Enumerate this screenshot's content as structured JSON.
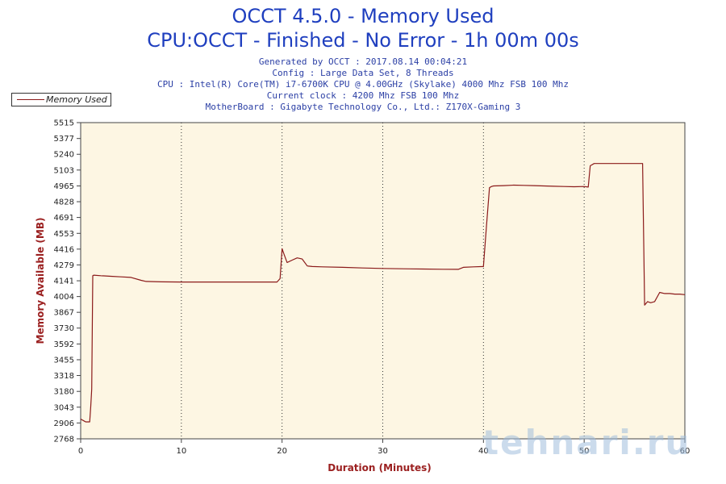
{
  "titles": {
    "line1": "OCCT 4.5.0 - Memory Used",
    "line2": "CPU:OCCT - Finished - No Error - 1h 00m 00s"
  },
  "info": {
    "generated": "Generated by OCCT : 2017.08.14 00:04:21",
    "config": "Config : Large Data Set, 8 Threads",
    "cpu": "CPU : Intel(R) Core(TM) i7-6700K CPU @ 4.00GHz (Skylake) 4000 Mhz FSB 100 Mhz",
    "clock": "Current clock : 4200 Mhz FSB 100 Mhz",
    "motherboard": "MotherBoard : Gigabyte Technology Co., Ltd.: Z170X-Gaming 3"
  },
  "watermark": "tehnari.ru",
  "colors": {
    "plot_bg": "#fdf6e3",
    "series": "#8b1a1a",
    "axis_label": "#9b2020",
    "title": "#1f3fbf"
  },
  "chart_data": {
    "type": "line",
    "title": "OCCT 4.5.0 - Memory Used",
    "xlabel": "Duration (Minutes)",
    "ylabel": "Memory Available (MB)",
    "xlim": [
      0,
      60
    ],
    "ylim": [
      2768,
      5515
    ],
    "xticks": [
      0,
      10,
      20,
      30,
      40,
      50,
      60
    ],
    "yticks": [
      2768,
      2906,
      3043,
      3180,
      3318,
      3455,
      3592,
      3730,
      3867,
      4004,
      4141,
      4279,
      4416,
      4553,
      4691,
      4828,
      4965,
      5103,
      5240,
      5377,
      5515
    ],
    "grid": "vertical dotted at x ticks",
    "legend": "top-left",
    "series": [
      {
        "name": "Memory Used",
        "x": [
          0,
          0.4,
          0.5,
          0.9,
          1.0,
          1.1,
          1.2,
          1.3,
          2,
          3,
          4,
          5,
          6,
          6.5,
          8,
          10,
          12,
          14,
          16,
          18,
          19.5,
          19.8,
          20.0,
          20.2,
          20.5,
          21,
          21.5,
          22,
          22.5,
          23,
          24,
          26,
          28,
          30,
          32,
          34,
          36,
          37.5,
          38,
          39,
          40,
          40.3,
          40.6,
          40.8,
          41,
          42,
          43,
          44,
          45,
          46,
          47,
          48,
          49,
          50,
          50.4,
          50.6,
          51,
          52,
          53,
          54,
          55,
          55.5,
          55.8,
          56,
          56.3,
          56.6,
          57,
          57.5,
          58,
          58.5,
          59,
          59.5,
          60
        ],
        "y": [
          2940,
          2920,
          2915,
          2915,
          3050,
          3200,
          4185,
          4190,
          4185,
          4180,
          4175,
          4170,
          4145,
          4135,
          4132,
          4130,
          4130,
          4130,
          4130,
          4130,
          4130,
          4160,
          4420,
          4370,
          4300,
          4320,
          4340,
          4330,
          4270,
          4265,
          4262,
          4258,
          4252,
          4248,
          4245,
          4243,
          4241,
          4240,
          4258,
          4262,
          4265,
          4620,
          4950,
          4960,
          4965,
          4968,
          4972,
          4970,
          4968,
          4965,
          4962,
          4960,
          4958,
          4960,
          4955,
          5140,
          5160,
          5160,
          5160,
          5160,
          5160,
          5160,
          5160,
          3930,
          3960,
          3950,
          3960,
          4040,
          4030,
          4030,
          4025,
          4025,
          4020
        ]
      }
    ]
  }
}
